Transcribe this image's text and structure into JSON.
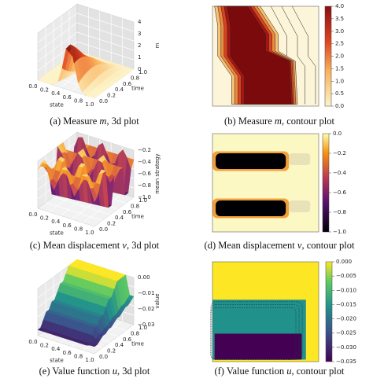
{
  "panels": [
    {
      "caption": {
        "prefix": "(a) Measure ",
        "var": "m",
        "suffix": ", 3d plot"
      },
      "x_label": "state",
      "y_label": "time",
      "z_label": "m",
      "x_ticks": [
        "0.0",
        "0.2",
        "0.4",
        "0.6",
        "0.8",
        "1.0"
      ],
      "y_ticks": [
        "0.0",
        "0.2",
        "0.4",
        "0.6",
        "0.8",
        "1.0"
      ],
      "z_ticks": [
        "0",
        "1",
        "2",
        "3",
        "4"
      ]
    },
    {
      "caption": {
        "prefix": "(b) Measure ",
        "var": "m",
        "suffix": ", contour plot"
      },
      "colorbar_ticks": [
        "0.0",
        "0.5",
        "1.0",
        "1.5",
        "2.0",
        "2.5",
        "3.0",
        "3.5",
        "4.0"
      ]
    },
    {
      "caption": {
        "prefix": "(c) Mean displacement ",
        "var": "v",
        "suffix": ", 3d plot"
      },
      "x_label": "state",
      "y_label": "time",
      "z_label": "mean strategy",
      "x_ticks": [
        "0.0",
        "0.2",
        "0.4",
        "0.6",
        "0.8",
        "1.0"
      ],
      "y_ticks": [
        "0.0",
        "0.2",
        "0.4",
        "0.6",
        "0.8",
        "1.0"
      ],
      "z_ticks": [
        "−1.0",
        "−0.8",
        "−0.6",
        "−0.4",
        "−0.2"
      ]
    },
    {
      "caption": {
        "prefix": "(d) Mean displacement ",
        "var": "v",
        "suffix": ", contour plot"
      },
      "colorbar_ticks": [
        "−1.0",
        "−0.8",
        "−0.6",
        "−0.4",
        "−0.2",
        "0.0"
      ]
    },
    {
      "caption": {
        "prefix": "(e) Value function ",
        "var": "u",
        "suffix": ", 3d plot"
      },
      "x_label": "state",
      "y_label": "time",
      "z_label": "value",
      "x_ticks": [
        "0.0",
        "0.2",
        "0.4",
        "0.6",
        "0.8",
        "1.0"
      ],
      "y_ticks": [
        "0.0",
        "0.2",
        "0.4",
        "0.6",
        "0.8",
        "1.0"
      ],
      "z_ticks": [
        "−0.03",
        "−0.02",
        "−0.01",
        "0.00"
      ]
    },
    {
      "caption": {
        "prefix": "(f) Value function ",
        "var": "u",
        "suffix": ", contour plot"
      },
      "colorbar_ticks": [
        "−0.035",
        "−0.030",
        "−0.025",
        "−0.020",
        "−0.015",
        "−0.010",
        "−0.005",
        "0.000"
      ]
    }
  ]
}
